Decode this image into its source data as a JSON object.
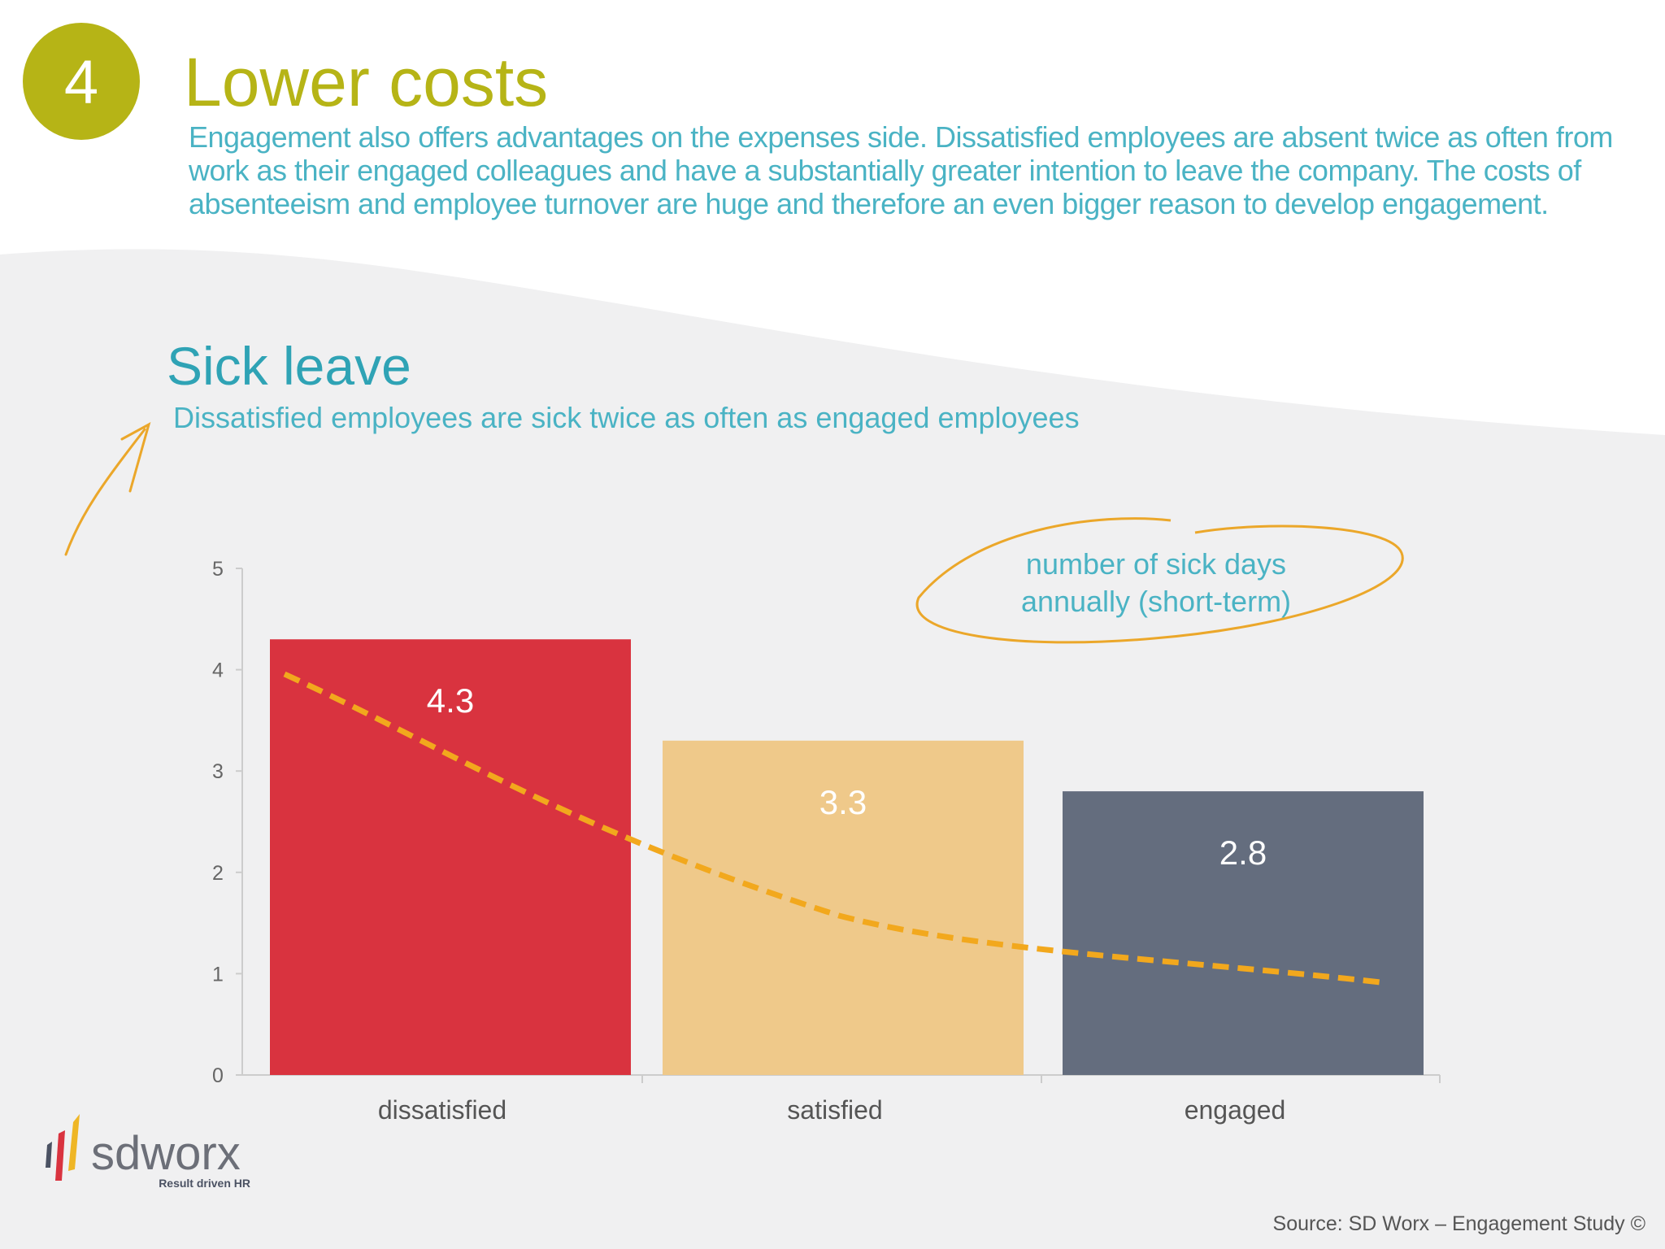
{
  "header": {
    "number": "4",
    "title": "Lower costs",
    "intro": "Engagement also offers advantages on the expenses side. Dissatisfied employees are absent twice as often from work as their engaged colleagues and have a substantially greater intention to leave the company. The costs of absenteeism and employee turnover are huge and therefore an even bigger reason to develop engagement."
  },
  "chart_data": {
    "type": "bar",
    "title": "Sick leave",
    "subtitle": "Dissatisfied employees are sick twice as often as engaged employees",
    "annotation": [
      "number of sick days",
      "annually (short-term)"
    ],
    "categories": [
      "dissatisfied",
      "satisfied",
      "engaged"
    ],
    "values": [
      4.3,
      3.3,
      2.8
    ],
    "colors": [
      "#d9333f",
      "#efc98a",
      "#646d7e"
    ],
    "ylim": [
      0,
      5
    ],
    "yticks": [
      0,
      1,
      2,
      3,
      4,
      5
    ]
  },
  "logo": {
    "name": "sdworx",
    "tagline": "Result driven HR"
  },
  "source": "Source: SD Worx  – Engagement Study ©"
}
